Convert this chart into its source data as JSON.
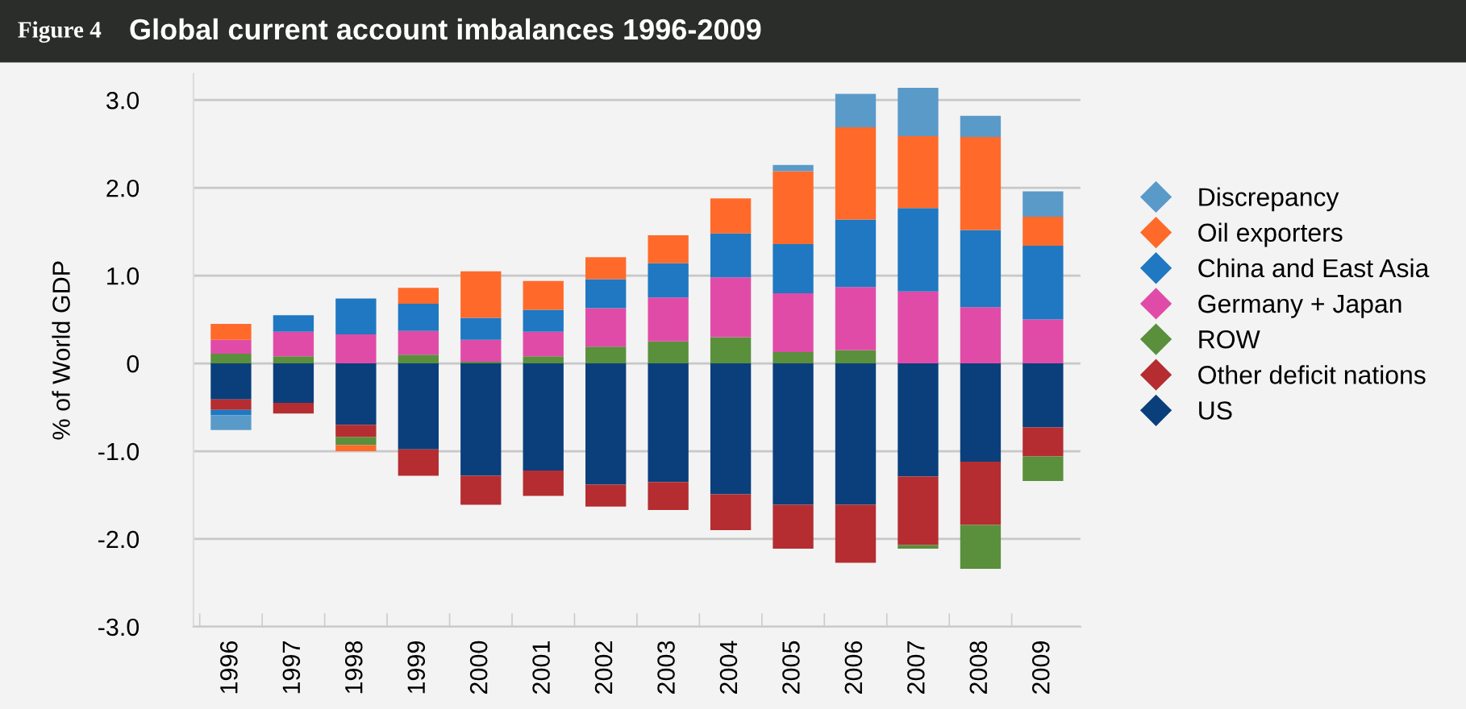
{
  "chart_data": {
    "type": "bar",
    "stacked": true,
    "title": "Global current account imbalances 1996-2009",
    "annotations": [
      "Figure 4"
    ],
    "ylabel": "% of World GDP",
    "categories": [
      "1996",
      "1997",
      "1998",
      "1999",
      "2000",
      "2001",
      "2002",
      "2003",
      "2004",
      "2005",
      "2006",
      "2007",
      "2008",
      "2009"
    ],
    "series": [
      {
        "name": "US",
        "color": "#0a3f7c",
        "values": [
          -0.41,
          -0.45,
          -0.7,
          -0.98,
          -1.28,
          -1.22,
          -1.38,
          -1.35,
          -1.49,
          -1.61,
          -1.61,
          -1.29,
          -1.12,
          -0.73
        ]
      },
      {
        "name": "Other deficit nations",
        "color": "#b52d30",
        "values": [
          -0.12,
          -0.12,
          -0.14,
          -0.3,
          -0.33,
          -0.29,
          -0.25,
          -0.32,
          -0.41,
          -0.5,
          -0.66,
          -0.78,
          -0.72,
          -0.33
        ]
      },
      {
        "name": "ROW",
        "color": "#5a8f3c",
        "values": [
          0.11,
          0.08,
          -0.09,
          0.1,
          0.02,
          0.08,
          0.19,
          0.25,
          0.3,
          0.13,
          0.15,
          -0.04,
          -0.5,
          -0.28
        ]
      },
      {
        "name": "Germany + Japan",
        "color": "#e04ba8",
        "values": [
          0.16,
          0.28,
          0.33,
          0.27,
          0.25,
          0.28,
          0.44,
          0.5,
          0.68,
          0.67,
          0.72,
          0.82,
          0.64,
          0.5
        ]
      },
      {
        "name": "China and East Asia",
        "color": "#1f78c1",
        "values": [
          -0.06,
          0.19,
          0.41,
          0.31,
          0.25,
          0.25,
          0.33,
          0.39,
          0.5,
          0.56,
          0.77,
          0.95,
          0.88,
          0.84
        ]
      },
      {
        "name": "Oil exporters",
        "color": "#ff6a2a",
        "values": [
          0.18,
          null,
          -0.07,
          0.18,
          0.53,
          0.33,
          0.25,
          0.32,
          0.4,
          0.83,
          1.05,
          0.82,
          1.06,
          0.33
        ]
      },
      {
        "name": "Discrepancy",
        "color": "#5a9ac9",
        "values": [
          -0.17,
          null,
          null,
          null,
          null,
          null,
          null,
          null,
          null,
          0.07,
          0.38,
          0.55,
          0.24,
          0.29
        ]
      }
    ],
    "ylim": [
      -3,
      3.3
    ],
    "yticks": [
      {
        "value": 3,
        "label": "3.0"
      },
      {
        "value": 2,
        "label": "2.0"
      },
      {
        "value": 1,
        "label": "1.0"
      },
      0,
      {
        "value": -1,
        "label": "-1.0"
      },
      {
        "value": -2,
        "label": "-2.0"
      },
      {
        "value": -3,
        "label": "-3.0"
      }
    ],
    "grid": "y",
    "legend": "right",
    "marker": "diamond"
  }
}
